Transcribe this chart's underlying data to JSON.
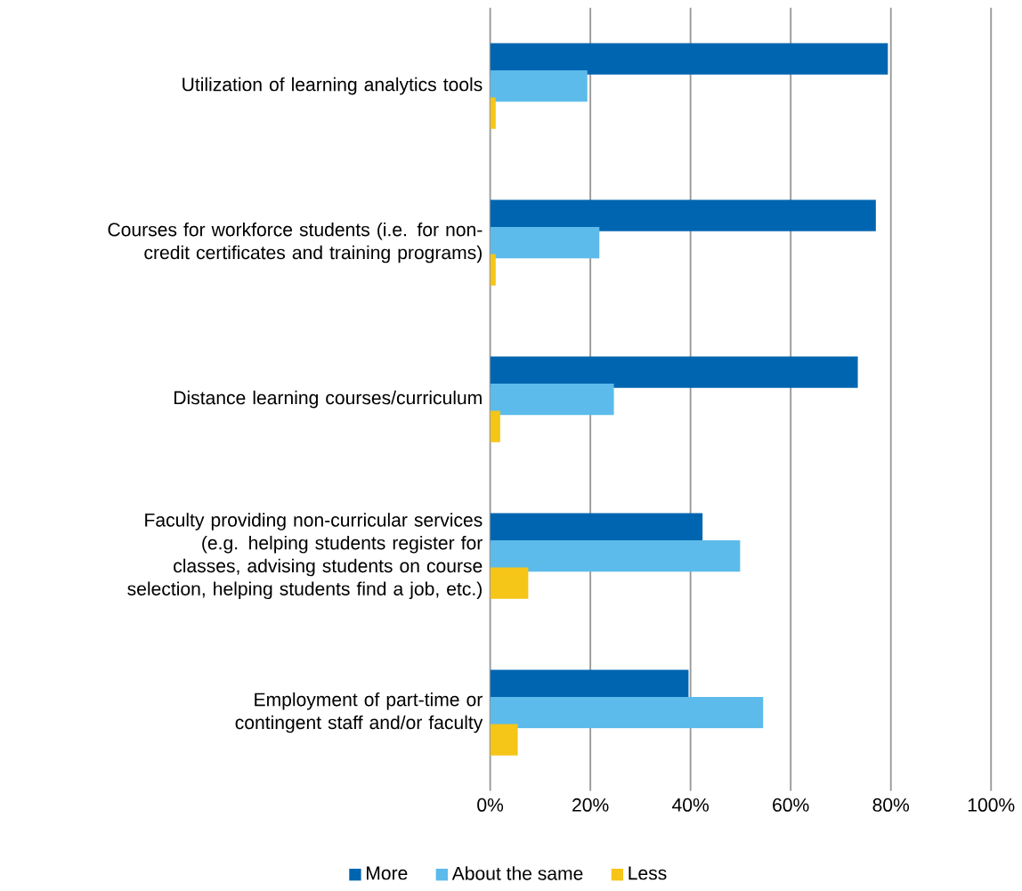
{
  "chart_data": {
    "type": "bar",
    "orientation": "horizontal",
    "categories": [
      "Utilization of learning analytics tools",
      "Courses for workforce students (i.e. for non-credit certificates and training programs)",
      "Distance learning courses/curriculum",
      "Faculty providing non-curricular services (e.g. helping students register for classes, advising students on course selection, helping students find a job, etc.)",
      "Employment of part-time or contingent staff and/or faculty"
    ],
    "series": [
      {
        "name": "More",
        "color": "#0065b0",
        "values": [
          79.4,
          77.0,
          73.4,
          42.4,
          39.6
        ]
      },
      {
        "name": "About the same",
        "color": "#5cbbea",
        "values": [
          19.4,
          21.8,
          24.7,
          49.9,
          54.5
        ]
      },
      {
        "name": "Less",
        "color": "#f5c518",
        "values": [
          1.1,
          1.1,
          2.0,
          7.6,
          5.5
        ]
      }
    ],
    "xlim": [
      0,
      100
    ],
    "xticks": [
      {
        "value": 0,
        "label": "0%"
      },
      {
        "value": 20,
        "label": "20%"
      },
      {
        "value": 40,
        "label": "40%"
      },
      {
        "value": 60,
        "label": "60%"
      },
      {
        "value": 80,
        "label": "80%"
      },
      {
        "value": 100,
        "label": "100%"
      }
    ],
    "grid": "x",
    "legend": "bottom"
  }
}
